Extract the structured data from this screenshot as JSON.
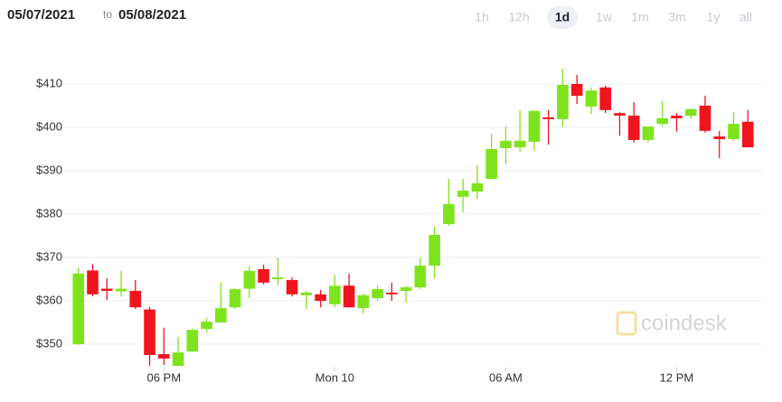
{
  "header": {
    "from": "05/07/2021",
    "to_word": "to",
    "to": "05/08/2021",
    "range_buttons": [
      "1h",
      "12h",
      "1d",
      "1w",
      "1m",
      "3m",
      "1y",
      "all"
    ],
    "selected_range": "1d"
  },
  "watermark": "coindesk",
  "chart_data": {
    "type": "candlestick",
    "x": [
      0,
      0.5,
      1,
      1.5,
      2,
      2.5,
      3,
      3.5,
      4,
      4.5,
      5,
      5.5,
      6,
      6.5,
      7,
      7.5,
      8,
      8.5,
      9,
      9.5,
      10,
      10.5,
      11,
      11.5,
      12,
      12.5,
      13,
      13.5,
      14,
      14.5,
      15,
      15.5,
      16,
      16.5,
      17,
      17.5,
      18,
      18.5,
      19,
      19.5,
      20,
      20.5,
      21,
      21.5,
      22,
      22.5,
      23,
      23.5
    ],
    "open": [
      350,
      367,
      362.8,
      362.2,
      362.3,
      358,
      347.7,
      345,
      348.3,
      353.5,
      355,
      358.5,
      362.8,
      367.3,
      365,
      364.8,
      361.3,
      361.5,
      359.2,
      363.5,
      358.3,
      360.6,
      361.9,
      362.3,
      363.1,
      368.1,
      377.7,
      384,
      385.2,
      388.1,
      395.2,
      395.4,
      396.7,
      402.3,
      401.9,
      410,
      404.8,
      409.2,
      403.3,
      402.7,
      397.1,
      400.8,
      402.7,
      402.7,
      405,
      397.9,
      397.3,
      401.3
    ],
    "high": [
      367.7,
      368.5,
      365.2,
      366.9,
      364.8,
      358.6,
      353.8,
      351.7,
      353.6,
      356,
      364.2,
      362.9,
      368,
      368.3,
      370,
      365.4,
      362.3,
      362.5,
      366,
      366.3,
      361.7,
      363.5,
      364.2,
      363.5,
      370,
      377.1,
      388.1,
      388.1,
      391.3,
      398.5,
      400.2,
      404,
      404,
      404,
      413.5,
      412.1,
      409.2,
      409.6,
      403.5,
      405.8,
      400.2,
      406,
      403.3,
      404.4,
      407.3,
      399.2,
      403.5,
      404
    ],
    "low": [
      349.8,
      361,
      360.2,
      361,
      358.1,
      345,
      345.2,
      345,
      348.3,
      352.7,
      355,
      358.1,
      360.6,
      363.8,
      363.7,
      361,
      358.1,
      358.5,
      358.5,
      358.5,
      357.1,
      360,
      360,
      359.6,
      362.7,
      365.2,
      377.3,
      380.4,
      383.5,
      388.1,
      391.5,
      394.4,
      394.6,
      396,
      400.2,
      405.4,
      403.1,
      403.3,
      398.1,
      396.5,
      396.5,
      400.2,
      399,
      401.9,
      398.8,
      392.9,
      396.9,
      395.6
    ],
    "close": [
      366.3,
      361.5,
      362.3,
      362.8,
      358.5,
      347.5,
      346.7,
      348.1,
      353.3,
      355.2,
      358.3,
      362.7,
      366.9,
      364.2,
      365.4,
      361.5,
      361.9,
      360,
      363.5,
      358.5,
      361.3,
      362.7,
      361.5,
      363.1,
      368.1,
      375.2,
      382.3,
      385.4,
      387.1,
      395,
      396.9,
      396.9,
      403.8,
      401.9,
      409.8,
      407.3,
      408.5,
      404,
      402.7,
      397.1,
      400.2,
      402.1,
      402.1,
      404.2,
      399.2,
      397.3,
      400.8,
      395.4
    ],
    "up_color": "#7ee31d",
    "down_color": "#f0141e",
    "xlim": [
      -0.5,
      24
    ],
    "xticks": [
      {
        "value": 3,
        "label": "06 PM"
      },
      {
        "value": 9,
        "label": "Mon 10"
      },
      {
        "value": 15,
        "label": "06 AM"
      },
      {
        "value": 21,
        "label": "12 PM"
      }
    ],
    "ylim": [
      343,
      417
    ],
    "yticks": [
      {
        "value": 350,
        "label": "$350"
      },
      {
        "value": 360,
        "label": "$360"
      },
      {
        "value": 370,
        "label": "$370"
      },
      {
        "value": 380,
        "label": "$380"
      },
      {
        "value": 390,
        "label": "$390"
      },
      {
        "value": 400,
        "label": "$400"
      },
      {
        "value": 410,
        "label": "$410"
      }
    ],
    "grid": true
  }
}
